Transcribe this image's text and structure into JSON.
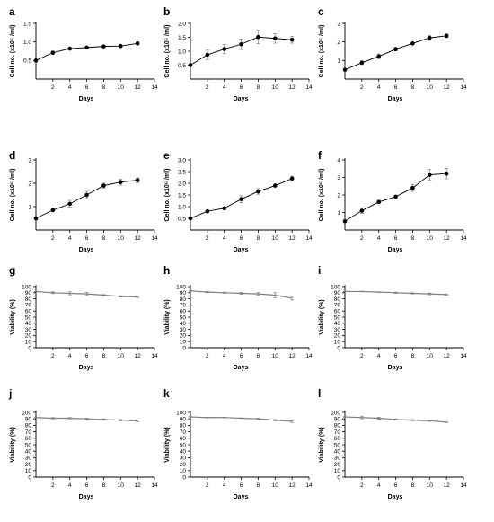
{
  "chart_data": [
    {
      "panel": "a",
      "type": "line",
      "xlabel": "Days",
      "ylabel": "Cell no. (x10⁶ /ml)",
      "xlim": [
        0,
        14
      ],
      "xticks": [
        2,
        4,
        6,
        8,
        10,
        12,
        14
      ],
      "ylim": [
        0,
        1.5
      ],
      "yticks": [
        "0.5",
        "1.0",
        "1.5"
      ],
      "x": [
        0,
        2,
        4,
        6,
        8,
        10,
        12
      ],
      "y": [
        0.5,
        0.71,
        0.82,
        0.85,
        0.88,
        0.89,
        0.96
      ],
      "err": [
        0.01,
        0.04,
        0.03,
        0.02,
        0.02,
        0.02,
        0.02
      ]
    },
    {
      "panel": "b",
      "type": "line",
      "xlabel": "Days",
      "ylabel": "Cell no. (x10⁶ /ml)",
      "xlim": [
        0,
        14
      ],
      "xticks": [
        2,
        4,
        6,
        8,
        10,
        12,
        14
      ],
      "ylim": [
        0,
        2.0
      ],
      "yticks": [
        "0.5",
        "1.0",
        "1.5",
        "2.0"
      ],
      "x": [
        0,
        2,
        4,
        6,
        8,
        10,
        12
      ],
      "y": [
        0.5,
        0.87,
        1.08,
        1.25,
        1.51,
        1.46,
        1.41
      ],
      "err": [
        0.01,
        0.17,
        0.16,
        0.19,
        0.24,
        0.17,
        0.12
      ]
    },
    {
      "panel": "c",
      "type": "line",
      "xlabel": "Days",
      "ylabel": "Cell no. (x10⁶ /ml)",
      "xlim": [
        0,
        14
      ],
      "xticks": [
        2,
        4,
        6,
        8,
        10,
        12,
        14
      ],
      "ylim": [
        0,
        3
      ],
      "yticks": [
        "1",
        "2",
        "3"
      ],
      "x": [
        0,
        2,
        4,
        6,
        8,
        10,
        12
      ],
      "y": [
        0.5,
        0.88,
        1.22,
        1.61,
        1.92,
        2.22,
        2.33
      ],
      "err": [
        0.02,
        0.1,
        0.13,
        0.1,
        0.05,
        0.14,
        0.1
      ]
    },
    {
      "panel": "d",
      "type": "line",
      "xlabel": "Days",
      "ylabel": "Cell no. (x10⁶ /ml)",
      "xlim": [
        0,
        14
      ],
      "xticks": [
        2,
        4,
        6,
        8,
        10,
        12,
        14
      ],
      "ylim": [
        0,
        3
      ],
      "yticks": [
        "1",
        "2",
        "3"
      ],
      "x": [
        0,
        2,
        4,
        6,
        8,
        10,
        12
      ],
      "y": [
        0.5,
        0.85,
        1.12,
        1.5,
        1.9,
        2.05,
        2.13
      ],
      "err": [
        0.02,
        0.04,
        0.15,
        0.15,
        0.1,
        0.13,
        0.1
      ]
    },
    {
      "panel": "e",
      "type": "line",
      "xlabel": "Days",
      "ylabel": "Cell no. (x10⁶ /ml)",
      "xlim": [
        0,
        14
      ],
      "xticks": [
        2,
        4,
        6,
        8,
        10,
        12,
        14
      ],
      "ylim": [
        0,
        3.0
      ],
      "yticks": [
        "0.5",
        "1.0",
        "1.5",
        "2.0",
        "2.5",
        "3.0"
      ],
      "x": [
        0,
        2,
        4,
        6,
        8,
        10,
        12
      ],
      "y": [
        0.5,
        0.8,
        0.93,
        1.32,
        1.65,
        1.9,
        2.2
      ],
      "err": [
        0.02,
        0.02,
        0.03,
        0.15,
        0.12,
        0.06,
        0.1
      ]
    },
    {
      "panel": "f",
      "type": "line",
      "xlabel": "Days",
      "ylabel": "Cell no. (x10⁶ /ml)",
      "xlim": [
        0,
        14
      ],
      "xticks": [
        2,
        4,
        6,
        8,
        10,
        12,
        14
      ],
      "ylim": [
        0,
        4
      ],
      "yticks": [
        "1",
        "2",
        "3",
        "4"
      ],
      "x": [
        0,
        2,
        4,
        6,
        8,
        10,
        12
      ],
      "y": [
        0.5,
        1.1,
        1.6,
        1.9,
        2.4,
        3.15,
        3.22
      ],
      "err": [
        0.02,
        0.15,
        0.1,
        0.06,
        0.2,
        0.3,
        0.3
      ]
    },
    {
      "panel": "g",
      "type": "line",
      "xlabel": "Days",
      "ylabel": "Viability (%)",
      "xlim": [
        0,
        14
      ],
      "xticks": [
        2,
        4,
        6,
        8,
        10,
        12,
        14
      ],
      "ylim": [
        0,
        100
      ],
      "yticks": [
        "0",
        "10",
        "20",
        "30",
        "40",
        "50",
        "60",
        "70",
        "80",
        "90",
        "100"
      ],
      "x": [
        0,
        2,
        4,
        6,
        8,
        10,
        12
      ],
      "y": [
        92,
        90,
        89,
        88,
        86,
        84,
        83
      ],
      "err": [
        0.5,
        1.5,
        2.5,
        2.5,
        1,
        1,
        1
      ]
    },
    {
      "panel": "h",
      "type": "line",
      "xlabel": "Days",
      "ylabel": "Viability (%)",
      "xlim": [
        0,
        14
      ],
      "xticks": [
        2,
        4,
        6,
        8,
        10,
        12,
        14
      ],
      "ylim": [
        0,
        100
      ],
      "yticks": [
        "0",
        "10",
        "20",
        "30",
        "40",
        "50",
        "60",
        "70",
        "80",
        "90",
        "100"
      ],
      "x": [
        0,
        2,
        4,
        6,
        8,
        10,
        12
      ],
      "y": [
        93,
        91,
        90,
        89,
        88,
        86,
        81
      ],
      "err": [
        0.5,
        1,
        1,
        1.5,
        2,
        4,
        3
      ]
    },
    {
      "panel": "i",
      "type": "line",
      "xlabel": "Days",
      "ylabel": "Viability (%)",
      "xlim": [
        0,
        14
      ],
      "xticks": [
        2,
        4,
        6,
        8,
        10,
        12,
        14
      ],
      "ylim": [
        0,
        100
      ],
      "yticks": [
        "0",
        "10",
        "20",
        "30",
        "40",
        "50",
        "60",
        "70",
        "80",
        "90",
        "100"
      ],
      "x": [
        0,
        2,
        4,
        6,
        8,
        10,
        12
      ],
      "y": [
        92,
        92,
        91,
        90,
        89,
        88,
        87
      ],
      "err": [
        0.5,
        0.5,
        0.5,
        1,
        1,
        1.5,
        1
      ]
    },
    {
      "panel": "j",
      "type": "line",
      "xlabel": "Days",
      "ylabel": "Viability (%)",
      "xlim": [
        0,
        14
      ],
      "xticks": [
        2,
        4,
        6,
        8,
        10,
        12,
        14
      ],
      "ylim": [
        0,
        100
      ],
      "yticks": [
        "0",
        "10",
        "20",
        "30",
        "40",
        "50",
        "60",
        "70",
        "80",
        "90",
        "100"
      ],
      "x": [
        0,
        2,
        4,
        6,
        8,
        10,
        12
      ],
      "y": [
        92,
        91,
        91,
        90,
        89,
        88,
        87
      ],
      "err": [
        0.5,
        1,
        1,
        1,
        1,
        1,
        1.5
      ]
    },
    {
      "panel": "k",
      "type": "line",
      "xlabel": "Days",
      "ylabel": "Viability (%)",
      "xlim": [
        0,
        14
      ],
      "xticks": [
        2,
        4,
        6,
        8,
        10,
        12,
        14
      ],
      "ylim": [
        0,
        100
      ],
      "yticks": [
        "0",
        "10",
        "20",
        "30",
        "40",
        "50",
        "60",
        "70",
        "80",
        "90",
        "100"
      ],
      "x": [
        0,
        2,
        4,
        6,
        8,
        10,
        12
      ],
      "y": [
        93,
        92,
        92,
        91,
        90,
        88,
        86
      ],
      "err": [
        0.5,
        0.5,
        0.5,
        0.5,
        1,
        1,
        1.5
      ]
    },
    {
      "panel": "l",
      "type": "line",
      "xlabel": "Days",
      "ylabel": "Viability (%)",
      "xlim": [
        0,
        14
      ],
      "xticks": [
        2,
        4,
        6,
        8,
        10,
        12,
        14
      ],
      "ylim": [
        0,
        100
      ],
      "yticks": [
        "0",
        "10",
        "20",
        "30",
        "40",
        "50",
        "60",
        "70",
        "80",
        "90",
        "100"
      ],
      "x": [
        0,
        2,
        4,
        6,
        8,
        10,
        12
      ],
      "y": [
        93,
        92,
        91,
        89,
        88,
        87,
        85
      ],
      "err": [
        0.5,
        2,
        1.5,
        1,
        1,
        1,
        0.5
      ]
    }
  ],
  "colors": {
    "growth_series": "#000000",
    "viability_series": "#7f7f7f",
    "axis": "#000000",
    "error_bars": "#7f7f7f"
  }
}
